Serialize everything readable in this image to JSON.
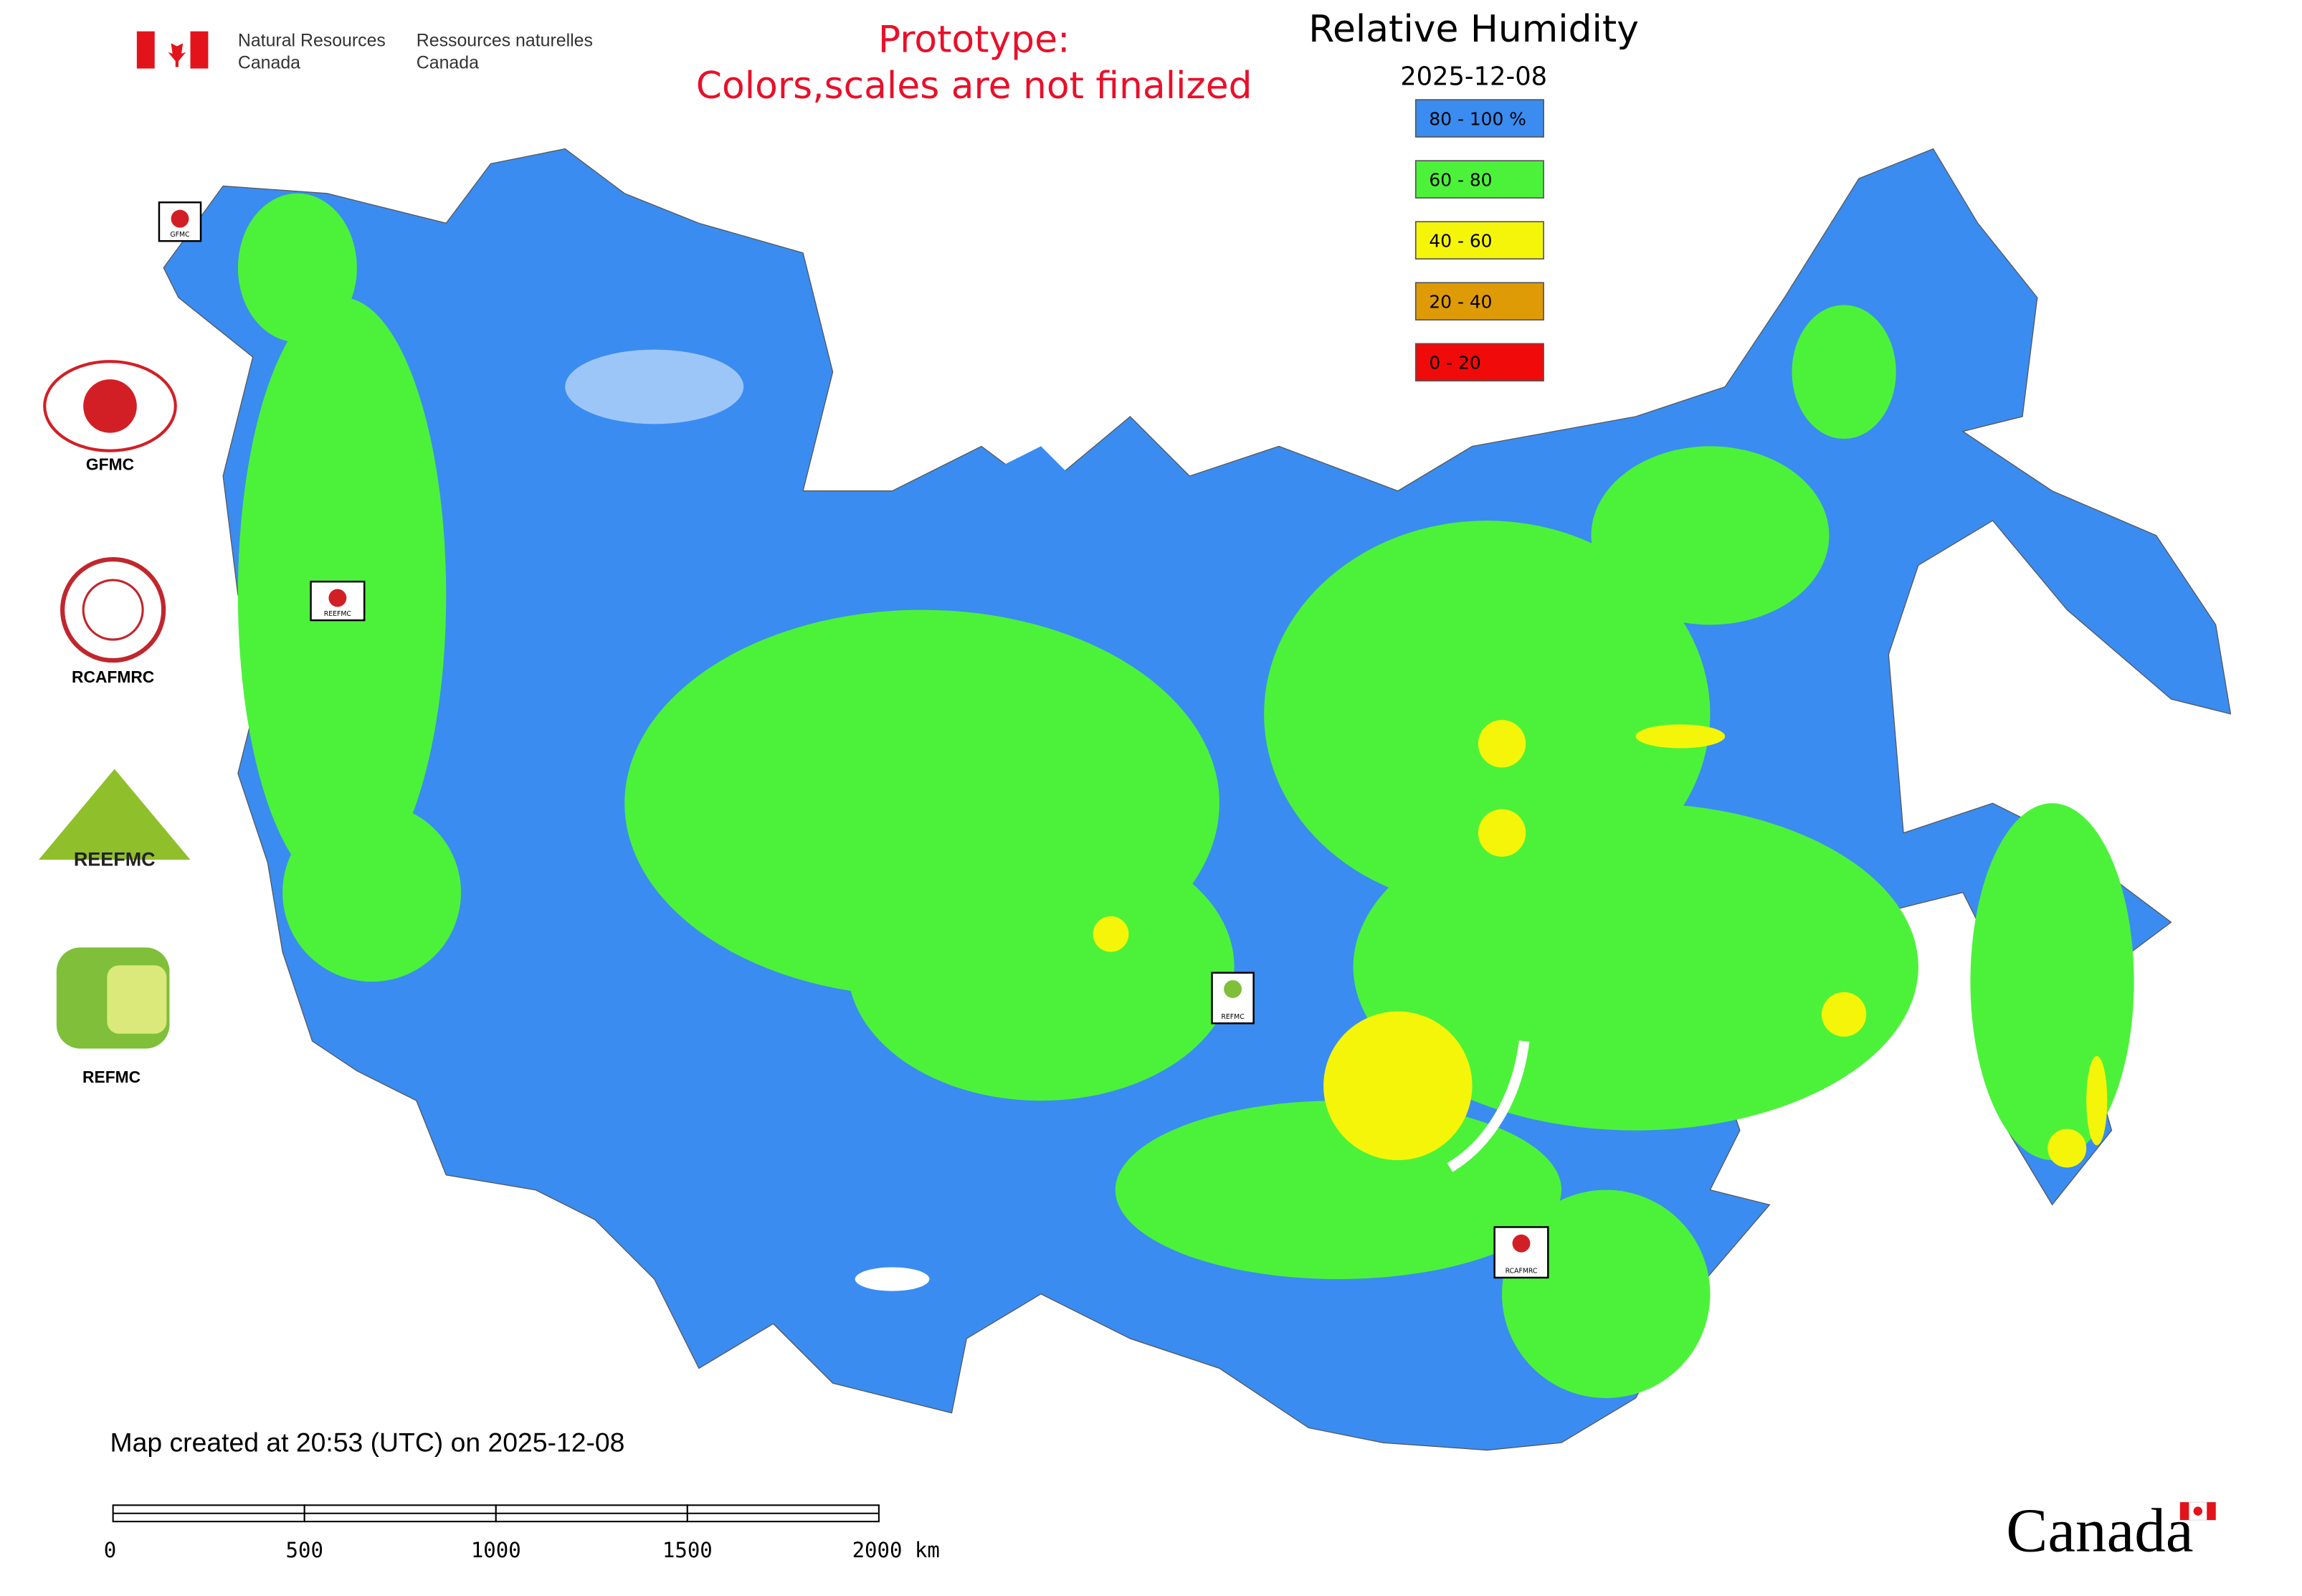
{
  "header": {
    "agency_en": [
      "Natural Resources",
      "Canada"
    ],
    "agency_fr": [
      "Ressources naturelles",
      "Canada"
    ],
    "notice": [
      "Prototype:",
      "Colors,scales are not finalized"
    ],
    "title": "Relative Humidity",
    "date": "2025-12-08"
  },
  "legend": [
    {
      "label": "80 - 100 %",
      "color": "#3a8cf0"
    },
    {
      "label": "60 - 80",
      "color": "#4cf23a"
    },
    {
      "label": "40 - 60",
      "color": "#f5f50a"
    },
    {
      "label": "20 - 40",
      "color": "#de9b06"
    },
    {
      "label": "0 - 20",
      "color": "#f00a0a"
    }
  ],
  "logos": [
    {
      "label": "GFMC"
    },
    {
      "label": "RCAFMRC"
    },
    {
      "label": "REEFMC"
    },
    {
      "label": "REFMC"
    }
  ],
  "map_markers": [
    "GFMC",
    "REEFMC",
    "REFMC",
    "RCAFMRC"
  ],
  "footer": {
    "created": "Map created at 20:53 (UTC) on 2025-12-08",
    "scale_labels": [
      "0",
      "500",
      "1000",
      "1500",
      "2000 km"
    ],
    "wordmark": "Canada"
  }
}
